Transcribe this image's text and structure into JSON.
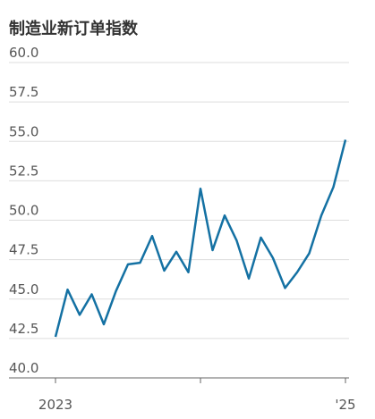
{
  "chart_data": {
    "type": "line",
    "title": "制造业新订单指数",
    "categories": [
      "2023",
      null,
      null,
      null,
      null,
      null,
      null,
      null,
      null,
      null,
      null,
      null,
      null,
      null,
      null,
      null,
      null,
      null,
      null,
      null,
      null,
      null,
      null,
      null,
      "'25"
    ],
    "series": [
      {
        "color": "#1471a3",
        "values": [
          42.6,
          45.6,
          44.0,
          45.3,
          43.4,
          45.5,
          47.2,
          47.3,
          49.0,
          46.8,
          48.0,
          46.7,
          52.0,
          48.1,
          50.3,
          48.7,
          46.3,
          48.9,
          47.6,
          45.7,
          46.7,
          47.9,
          50.3,
          52.1,
          55.1
        ]
      }
    ],
    "ylim": [
      40,
      60
    ],
    "yticks": [
      {
        "value": 40,
        "label": "40.0"
      },
      42.5,
      {
        "value": 45,
        "label": "45.0"
      },
      47.5,
      {
        "value": 50,
        "label": "50.0"
      },
      52.5,
      {
        "value": 55,
        "label": "55.0"
      },
      57.5,
      {
        "value": 60,
        "label": "60.0"
      }
    ],
    "grid": true
  }
}
